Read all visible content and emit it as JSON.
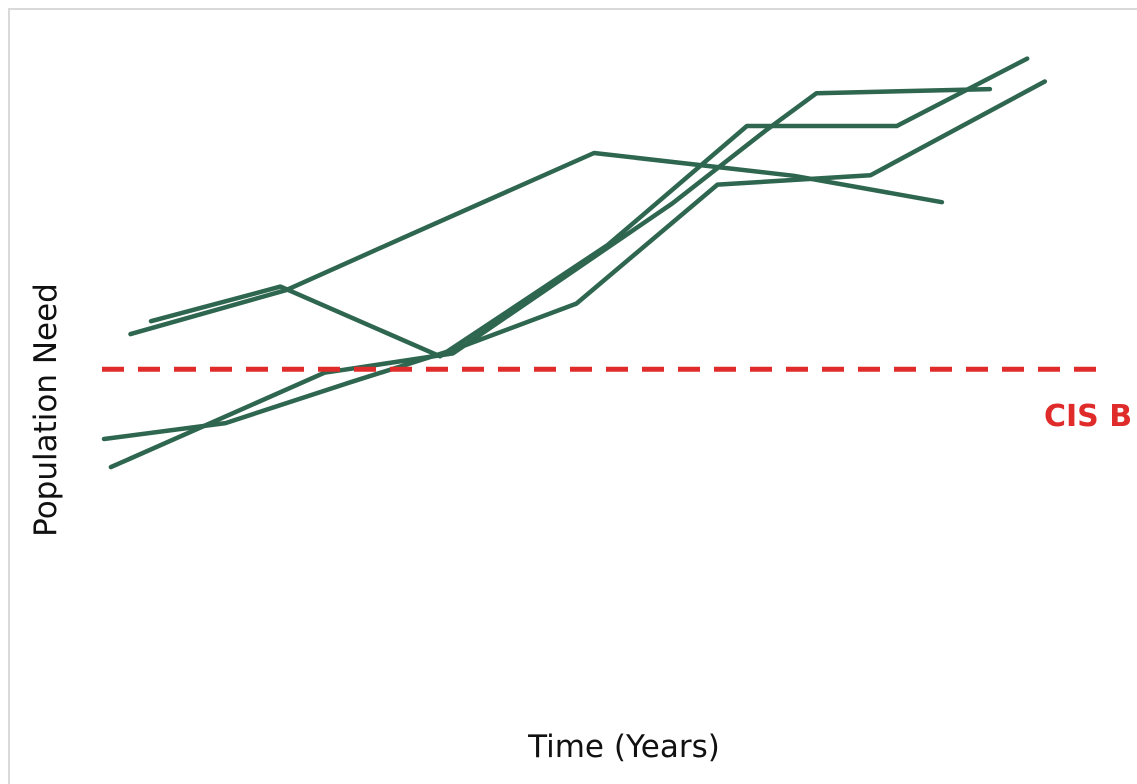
{
  "chart_data": {
    "type": "line",
    "title": "",
    "xlabel": "Time (Years)",
    "ylabel": "Population Need",
    "xlim": [
      0,
      100
    ],
    "ylim": [
      0,
      100
    ],
    "grid": false,
    "legend": "none",
    "colors": {
      "series": "#2e6650",
      "reference": "#e02b2b"
    },
    "reference_line": {
      "label": "CIS B",
      "y": 44.5,
      "style": "dashed"
    },
    "series": [
      {
        "points": [
          [
            2.7,
            50.5
          ],
          [
            18.6,
            58
          ],
          [
            30.6,
            67
          ],
          [
            50,
            81.4
          ],
          [
            70.4,
            77.5
          ],
          [
            85.5,
            73
          ]
        ]
      },
      {
        "points": [
          [
            4.8,
            52.7
          ],
          [
            18,
            58.6
          ],
          [
            34.3,
            46.7
          ],
          [
            51.4,
            65.7
          ],
          [
            65.6,
            86
          ],
          [
            80.9,
            86
          ],
          [
            94.2,
            97.5
          ]
        ]
      },
      {
        "points": [
          [
            0,
            32.6
          ],
          [
            12.4,
            35.3
          ],
          [
            25,
            42.2
          ],
          [
            35.6,
            47.8
          ],
          [
            48.2,
            55.7
          ],
          [
            62.6,
            76
          ],
          [
            78.2,
            77.6
          ],
          [
            96,
            93.6
          ]
        ]
      },
      {
        "points": [
          [
            0.7,
            27.8
          ],
          [
            11.4,
            35.7
          ],
          [
            22.5,
            43.9
          ],
          [
            35.6,
            47.2
          ],
          [
            58,
            72.8
          ],
          [
            67.5,
            85.2
          ],
          [
            72.7,
            91.6
          ],
          [
            90.4,
            92.3
          ]
        ]
      }
    ]
  }
}
